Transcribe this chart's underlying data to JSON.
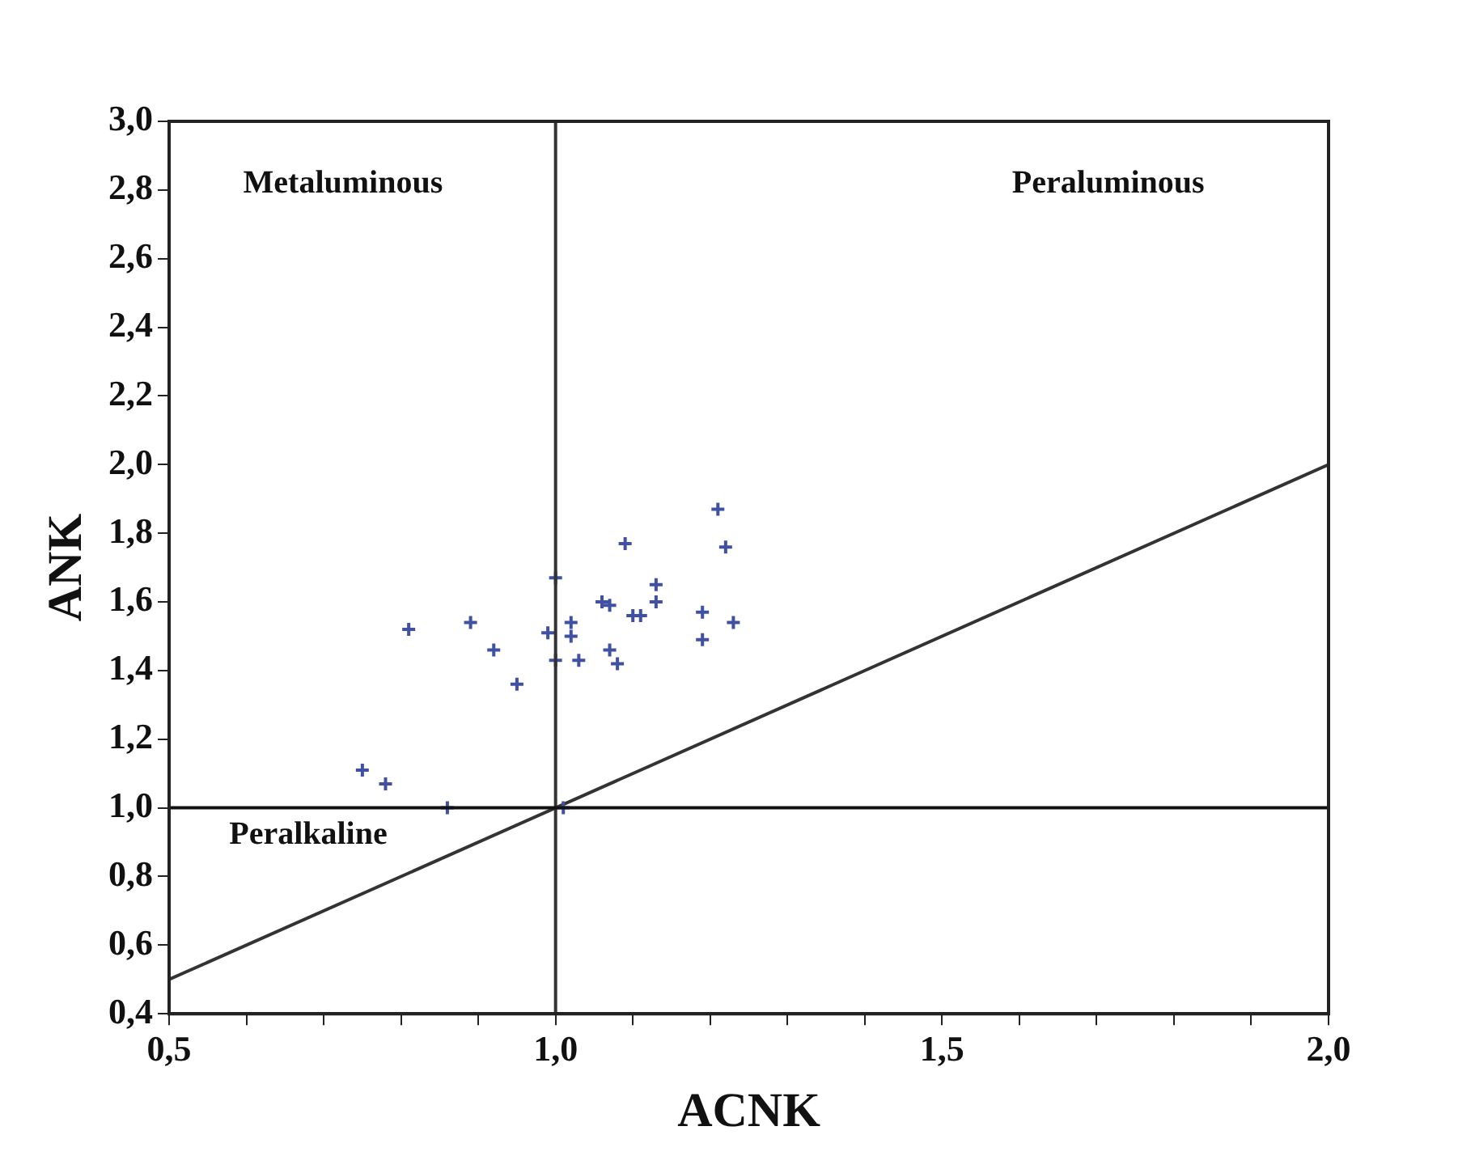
{
  "chart_data": {
    "type": "scatter",
    "xlabel": "ACNK",
    "ylabel": "ANK",
    "xlim": [
      0.5,
      2.0
    ],
    "xticks": [
      {
        "value": 0.5,
        "label": "0,5"
      },
      {
        "value": 0.6,
        "label": null
      },
      {
        "value": 0.7,
        "label": null
      },
      {
        "value": 0.8,
        "label": null
      },
      {
        "value": 0.9,
        "label": null
      },
      {
        "value": 1.0,
        "label": "1,0"
      },
      {
        "value": 1.1,
        "label": null
      },
      {
        "value": 1.2,
        "label": null
      },
      {
        "value": 1.3,
        "label": null
      },
      {
        "value": 1.4,
        "label": null
      },
      {
        "value": 1.5,
        "label": "1,5"
      },
      {
        "value": 1.6,
        "label": null
      },
      {
        "value": 1.7,
        "label": null
      },
      {
        "value": 1.8,
        "label": null
      },
      {
        "value": 1.9,
        "label": null
      },
      {
        "value": 2.0,
        "label": "2,0"
      }
    ],
    "ylim": [
      0.4,
      3.0
    ],
    "yticks": [
      {
        "value": 0.4,
        "label": "0,4"
      },
      {
        "value": 0.6,
        "label": "0,6"
      },
      {
        "value": 0.8,
        "label": "0,8"
      },
      {
        "value": 1.0,
        "label": "1,0"
      },
      {
        "value": 1.2,
        "label": "1,2"
      },
      {
        "value": 1.4,
        "label": "1,4"
      },
      {
        "value": 1.6,
        "label": "1,6"
      },
      {
        "value": 1.8,
        "label": "1,8"
      },
      {
        "value": 2.0,
        "label": "2,0"
      },
      {
        "value": 2.2,
        "label": "2,2"
      },
      {
        "value": 2.4,
        "label": "2,4"
      },
      {
        "value": 2.6,
        "label": "2,6"
      },
      {
        "value": 2.8,
        "label": "2,8"
      },
      {
        "value": 3.0,
        "label": "3,0"
      }
    ],
    "grid": false,
    "marker": "cross",
    "series": [
      {
        "color": "#3f51a0",
        "x": [
          0.75,
          0.78,
          0.86,
          0.81,
          0.89,
          0.92,
          0.95,
          1.0,
          0.99,
          1.0,
          1.02,
          1.02,
          1.03,
          1.01,
          1.09,
          1.06,
          1.07,
          1.07,
          1.08,
          1.1,
          1.11,
          1.13,
          1.13,
          1.19,
          1.19,
          1.21,
          1.22,
          1.23
        ],
        "values": [
          1.11,
          1.07,
          1.0,
          1.52,
          1.54,
          1.46,
          1.36,
          1.67,
          1.51,
          1.43,
          1.54,
          1.5,
          1.43,
          1.0,
          1.77,
          1.6,
          1.59,
          1.46,
          1.42,
          1.56,
          1.56,
          1.65,
          1.6,
          1.57,
          1.49,
          1.87,
          1.76,
          1.54
        ]
      },
      {
        "type": "line",
        "color": "#333333",
        "marker": "none",
        "x": [
          0.5,
          2.0
        ],
        "values": [
          0.5,
          2.0
        ]
      }
    ],
    "ref_lines": [
      {
        "axis": "x",
        "value": 1.0,
        "color": "#333333"
      },
      {
        "axis": "y",
        "value": 1.0,
        "color": "#111111"
      }
    ],
    "annotations": [
      "Metaluminous",
      "Peraluminous",
      "Peralkaline"
    ],
    "legend": false
  }
}
